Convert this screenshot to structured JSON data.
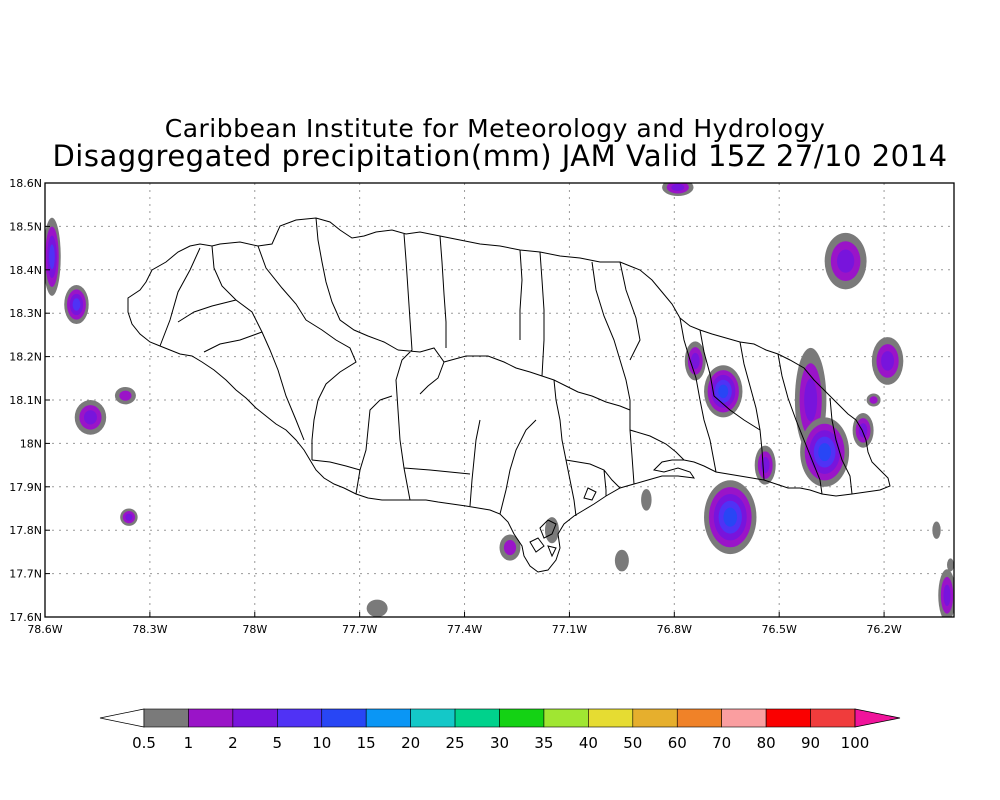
{
  "header": {
    "title": "Caribbean Institute for Meteorology and Hydrology",
    "subtitle": "Disaggregated precipitation(mm) JAM Valid 15Z 27/10 2014"
  },
  "map": {
    "lon_range": [
      -78.6,
      -76.0
    ],
    "lat_range": [
      17.6,
      18.6
    ],
    "grid_lines": true,
    "lat_ticks": [
      {
        "value": 18.6,
        "label": "18.6N"
      },
      {
        "value": 18.5,
        "label": "18.5N"
      },
      {
        "value": 18.4,
        "label": "18.4N"
      },
      {
        "value": 18.3,
        "label": "18.3N"
      },
      {
        "value": 18.2,
        "label": "18.2N"
      },
      {
        "value": 18.1,
        "label": "18.1N"
      },
      {
        "value": 18.0,
        "label": "18N"
      },
      {
        "value": 17.9,
        "label": "17.9N"
      },
      {
        "value": 17.8,
        "label": "17.8N"
      },
      {
        "value": 17.7,
        "label": "17.7N"
      },
      {
        "value": 17.6,
        "label": "17.6N"
      }
    ],
    "lon_ticks": [
      {
        "value": -78.6,
        "label": "78.6W"
      },
      {
        "value": -78.3,
        "label": "78.3W"
      },
      {
        "value": -78.0,
        "label": "78W"
      },
      {
        "value": -77.7,
        "label": "77.7W"
      },
      {
        "value": -77.4,
        "label": "77.4W"
      },
      {
        "value": -77.1,
        "label": "77.1W"
      },
      {
        "value": -76.8,
        "label": "76.8W"
      },
      {
        "value": -76.5,
        "label": "76.5W"
      },
      {
        "value": -76.2,
        "label": "76.2W"
      }
    ],
    "rain_cells": [
      {
        "lon": -78.58,
        "lat": 18.43,
        "peak": 5,
        "rlon": 0.025,
        "rlat": 0.09
      },
      {
        "lon": -78.51,
        "lat": 18.32,
        "peak": 5,
        "rlon": 0.035,
        "rlat": 0.045
      },
      {
        "lon": -78.47,
        "lat": 18.06,
        "peak": 2,
        "rlon": 0.045,
        "rlat": 0.04
      },
      {
        "lon": -78.37,
        "lat": 18.11,
        "peak": 1,
        "rlon": 0.03,
        "rlat": 0.02
      },
      {
        "lon": -78.36,
        "lat": 17.83,
        "peak": 2,
        "rlon": 0.025,
        "rlat": 0.02
      },
      {
        "lon": -77.65,
        "lat": 17.62,
        "peak": 0.5,
        "rlon": 0.03,
        "rlat": 0.02
      },
      {
        "lon": -77.27,
        "lat": 17.76,
        "peak": 1,
        "rlon": 0.03,
        "rlat": 0.03
      },
      {
        "lon": -77.15,
        "lat": 17.8,
        "peak": 0.5,
        "rlon": 0.02,
        "rlat": 0.03
      },
      {
        "lon": -76.88,
        "lat": 17.87,
        "peak": 0.5,
        "rlon": 0.015,
        "rlat": 0.025
      },
      {
        "lon": -76.95,
        "lat": 17.73,
        "peak": 0.5,
        "rlon": 0.02,
        "rlat": 0.025
      },
      {
        "lon": -76.79,
        "lat": 18.59,
        "peak": 2,
        "rlon": 0.045,
        "rlat": 0.02
      },
      {
        "lon": -76.74,
        "lat": 18.19,
        "peak": 2,
        "rlon": 0.03,
        "rlat": 0.045
      },
      {
        "lon": -76.66,
        "lat": 18.12,
        "peak": 10,
        "rlon": 0.055,
        "rlat": 0.06
      },
      {
        "lon": -76.64,
        "lat": 17.83,
        "peak": 10,
        "rlon": 0.075,
        "rlat": 0.085
      },
      {
        "lon": -76.54,
        "lat": 17.95,
        "peak": 2,
        "rlon": 0.03,
        "rlat": 0.045
      },
      {
        "lon": -76.41,
        "lat": 18.1,
        "peak": 2,
        "rlon": 0.045,
        "rlat": 0.12
      },
      {
        "lon": -76.37,
        "lat": 17.98,
        "peak": 10,
        "rlon": 0.07,
        "rlat": 0.08
      },
      {
        "lon": -76.31,
        "lat": 18.42,
        "peak": 2,
        "rlon": 0.06,
        "rlat": 0.065
      },
      {
        "lon": -76.26,
        "lat": 18.03,
        "peak": 2,
        "rlon": 0.03,
        "rlat": 0.04
      },
      {
        "lon": -76.19,
        "lat": 18.19,
        "peak": 2,
        "rlon": 0.045,
        "rlat": 0.055
      },
      {
        "lon": -76.23,
        "lat": 18.1,
        "peak": 1,
        "rlon": 0.02,
        "rlat": 0.015
      },
      {
        "lon": -76.02,
        "lat": 17.65,
        "peak": 2,
        "rlon": 0.025,
        "rlat": 0.06
      },
      {
        "lon": -76.05,
        "lat": 17.8,
        "peak": 0.5,
        "rlon": 0.012,
        "rlat": 0.02
      },
      {
        "lon": -76.01,
        "lat": 17.72,
        "peak": 0.5,
        "rlon": 0.01,
        "rlat": 0.015
      }
    ]
  },
  "colorbar": {
    "levels": [
      {
        "label": "0.5",
        "color": "#7a7a7a"
      },
      {
        "label": "1",
        "color": "#9a14c8"
      },
      {
        "label": "2",
        "color": "#7814dc"
      },
      {
        "label": "5",
        "color": "#5032f5"
      },
      {
        "label": "10",
        "color": "#2846f5"
      },
      {
        "label": "15",
        "color": "#0a96f5"
      },
      {
        "label": "20",
        "color": "#14c8c8"
      },
      {
        "label": "25",
        "color": "#00d28c"
      },
      {
        "label": "30",
        "color": "#14d214"
      },
      {
        "label": "35",
        "color": "#a0e632"
      },
      {
        "label": "40",
        "color": "#e6dc32"
      },
      {
        "label": "50",
        "color": "#e6af2d"
      },
      {
        "label": "60",
        "color": "#f08228"
      },
      {
        "label": "70",
        "color": "#fa9ea0"
      },
      {
        "label": "80",
        "color": "#fa0000"
      },
      {
        "label": "90",
        "color": "#f03c3c"
      },
      {
        "label": "100",
        "color": "#f0149b"
      }
    ],
    "under_color": "#ffffff",
    "over_color": "#f0149b"
  }
}
